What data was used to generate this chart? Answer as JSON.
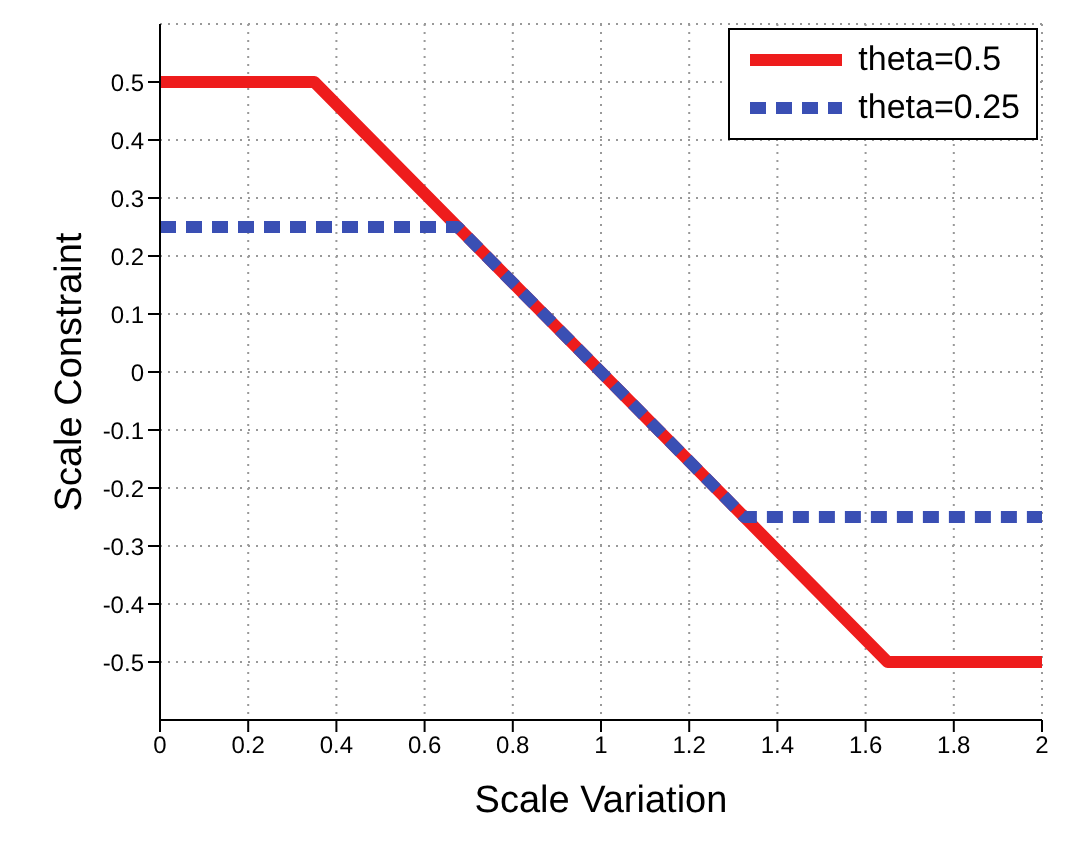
{
  "chart_data": {
    "type": "line",
    "xlabel": "Scale Variation",
    "ylabel": "Scale Constraint",
    "xlim": [
      0,
      2
    ],
    "xticks": [
      0,
      0.2,
      0.4,
      0.6,
      0.8,
      1,
      1.2,
      1.4,
      1.6,
      1.8,
      2
    ],
    "ylim": [
      -0.6,
      0.6
    ],
    "yticks": [
      -0.5,
      -0.4,
      -0.3,
      -0.2,
      -0.1,
      0,
      0.1,
      0.2,
      0.3,
      0.4,
      0.5
    ],
    "grid": true,
    "legend": "top right",
    "marker": "none",
    "series": [
      {
        "name": "theta=0.5",
        "color": "#ee1c1c",
        "line_style": "solid",
        "x": [
          0,
          0.35,
          1.65,
          2
        ],
        "values": [
          0.5,
          0.5,
          -0.5,
          -0.5
        ]
      },
      {
        "name": "theta=0.25",
        "color": "#3a4fb4",
        "line_style": "dashed",
        "x": [
          0,
          0.675,
          1.325,
          2
        ],
        "values": [
          0.25,
          0.25,
          -0.25,
          -0.25
        ]
      }
    ]
  }
}
